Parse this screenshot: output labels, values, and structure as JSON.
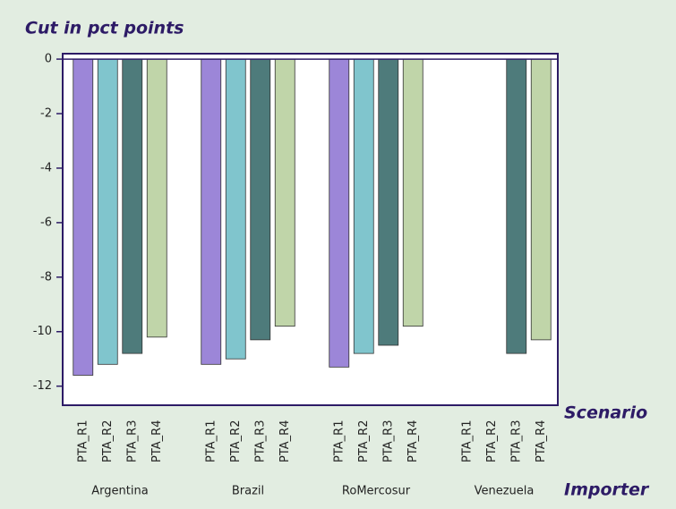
{
  "chart_data": {
    "type": "bar",
    "y_label": "Cut in pct points",
    "x_label": "Importer",
    "group_label": "Scenario",
    "categories": [
      "Argentina",
      "Brazil",
      "RoMercosur",
      "Venezuela"
    ],
    "series": [
      {
        "name": "PTA_R1",
        "color": "#9c86d8",
        "values": [
          -11.6,
          -11.2,
          -11.3,
          null
        ]
      },
      {
        "name": "PTA_R2",
        "color": "#80c5cd",
        "values": [
          -11.2,
          -11.0,
          -10.8,
          null
        ]
      },
      {
        "name": "PTA_R3",
        "color": "#4e7b7b",
        "values": [
          -10.8,
          -10.3,
          -10.5,
          -10.8
        ]
      },
      {
        "name": "PTA_R4",
        "color": "#c0d5a9",
        "values": [
          -10.2,
          -9.8,
          -9.8,
          -10.3
        ]
      }
    ],
    "ylim": [
      -12.7,
      0.2
    ],
    "yticks": [
      0,
      -2,
      -4,
      -6,
      -8,
      -10,
      -12
    ]
  }
}
